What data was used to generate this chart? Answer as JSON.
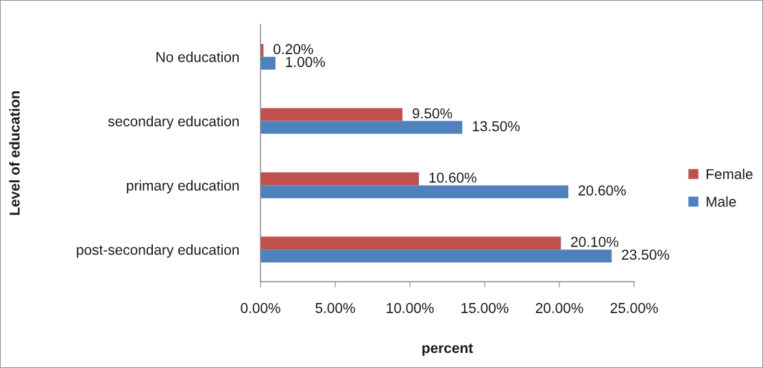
{
  "chart_data": {
    "type": "bar",
    "orientation": "horizontal",
    "categories": [
      "No education",
      "secondary education",
      "primary education",
      "post-secondary education"
    ],
    "series": [
      {
        "name": "Female",
        "color": "#c0504d",
        "values": [
          0.2,
          9.5,
          10.6,
          20.1
        ],
        "value_labels": [
          "0.20%",
          "9.50%",
          "10.60%",
          "20.10%"
        ]
      },
      {
        "name": "Male",
        "color": "#4f81bd",
        "values": [
          1.0,
          13.5,
          20.6,
          23.5
        ],
        "value_labels": [
          "1.00%",
          "13.50%",
          "20.60%",
          "23.50%"
        ]
      }
    ],
    "xlabel": "percent",
    "ylabel": "Level of education",
    "xlim": [
      0,
      25
    ],
    "xticks": [
      {
        "value": 0,
        "label": "0.00%"
      },
      {
        "value": 5,
        "label": "5.00%"
      },
      {
        "value": 10,
        "label": "10.00%"
      },
      {
        "value": 15,
        "label": "15.00%"
      },
      {
        "value": 20,
        "label": "20.00%"
      },
      {
        "value": 25,
        "label": "25.00%"
      }
    ],
    "legend": "right"
  }
}
